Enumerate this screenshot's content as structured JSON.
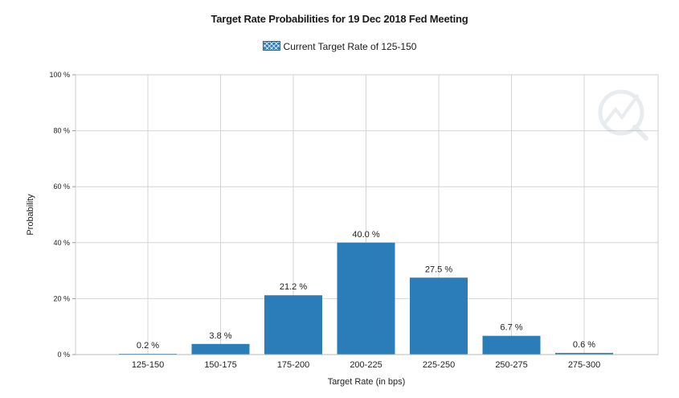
{
  "chart_data": {
    "type": "bar",
    "title": "Target Rate Probabilities for 19 Dec 2018 Fed Meeting",
    "legend": "Current Target Rate of 125-150",
    "xlabel": "Target Rate (in bps)",
    "ylabel": "Probability",
    "categories": [
      "125-150",
      "150-175",
      "175-200",
      "200-225",
      "225-250",
      "250-275",
      "275-300"
    ],
    "values": [
      0.2,
      3.8,
      21.2,
      40.0,
      27.5,
      6.7,
      0.6
    ],
    "data_labels": [
      "0.2 %",
      "3.8 %",
      "21.2 %",
      "40.0 %",
      "27.5 %",
      "6.7 %",
      "0.6 %"
    ],
    "ylim": [
      0,
      100
    ],
    "yticks": [
      0,
      20,
      40,
      60,
      80,
      100
    ],
    "ytick_labels": [
      "0 %",
      "20 %",
      "40 %",
      "60 %",
      "80 %",
      "100 %"
    ],
    "bar_color": "#2b7dba",
    "grid": true,
    "legend_position": "top-center"
  }
}
